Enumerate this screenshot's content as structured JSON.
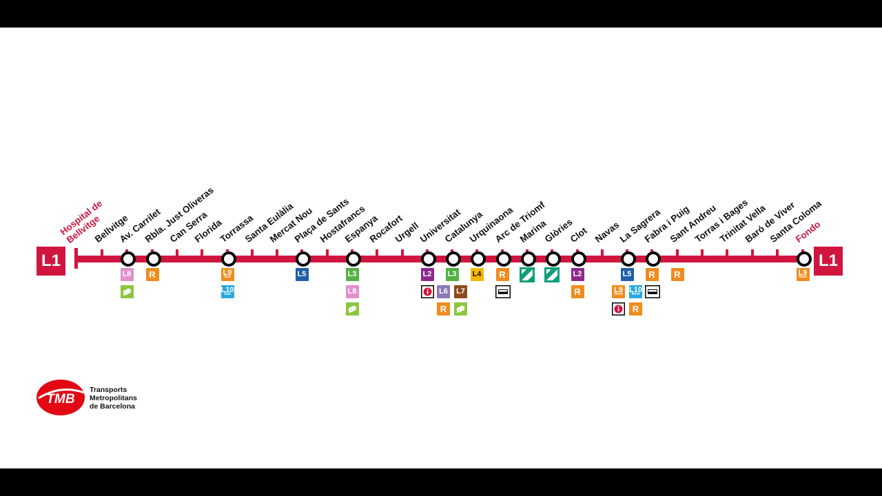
{
  "colors": {
    "line": "#d0153f",
    "label": "#111111",
    "terminal_label": "#d0153f",
    "L2": "#8e2a8f",
    "L3": "#52b142",
    "L4": "#f5b800",
    "L5": "#1f5faa",
    "L6": "#8b7ab8",
    "L7": "#8b4a1e",
    "L8": "#e38fcd",
    "L9": "#f08c1e",
    "L10": "#29a9e1",
    "R": "#f08c1e",
    "FGC": "#8cc63f",
    "tram": "#0d9e7a"
  },
  "line": {
    "name": "L1",
    "start_terminal": "Hospital de Bellvitge",
    "end_terminal": "Fondo"
  },
  "stations": [
    {
      "name": "Bellvitge",
      "xpos": 148,
      "node": false,
      "badges": []
    },
    {
      "name": "Av. Carrilet",
      "xpos": 184,
      "node": true,
      "badges": [
        [
          {
            "t": "L8",
            "c": "L8"
          }
        ],
        [
          {
            "t": "fgc-icon",
            "c": "FGC",
            "icon": true
          }
        ]
      ]
    },
    {
      "name": "Rbla. Just Oliveras",
      "xpos": 221,
      "node": true,
      "badges": [
        [
          {
            "t": "R",
            "c": "R"
          }
        ]
      ]
    },
    {
      "name": "Can Serra",
      "xpos": 257,
      "node": false,
      "badges": []
    },
    {
      "name": "Florida",
      "xpos": 293,
      "node": false,
      "badges": []
    },
    {
      "name": "Torrassa",
      "xpos": 330,
      "node": true,
      "badges": [
        [
          {
            "t": "L9",
            "c": "L9",
            "sub": "Sud"
          }
        ],
        [
          {
            "t": "L10",
            "c": "L10",
            "sub": "Sud"
          }
        ]
      ]
    },
    {
      "name": "Santa Eulàlia",
      "xpos": 366,
      "node": false,
      "badges": []
    },
    {
      "name": "Mercat Nou",
      "xpos": 402,
      "node": false,
      "badges": []
    },
    {
      "name": "Plaça de Sants",
      "xpos": 438,
      "node": true,
      "badges": [
        [
          {
            "t": "L5",
            "c": "L5"
          }
        ]
      ]
    },
    {
      "name": "Hostafrancs",
      "xpos": 475,
      "node": false,
      "badges": []
    },
    {
      "name": "Espanya",
      "xpos": 511,
      "node": true,
      "badges": [
        [
          {
            "t": "L3",
            "c": "L3"
          }
        ],
        [
          {
            "t": "L8",
            "c": "L8"
          }
        ],
        [
          {
            "t": "fgc-icon",
            "c": "FGC",
            "icon": true
          }
        ]
      ]
    },
    {
      "name": "Rocafort",
      "xpos": 547,
      "node": false,
      "badges": []
    },
    {
      "name": "Urgell",
      "xpos": 584,
      "node": false,
      "badges": []
    },
    {
      "name": "Universitat",
      "xpos": 620,
      "node": true,
      "badges": [
        [
          {
            "t": "L2",
            "c": "L2"
          }
        ],
        [
          {
            "t": "info-icon",
            "c": "info",
            "icon": true
          }
        ]
      ]
    },
    {
      "name": "Catalunya",
      "xpos": 656,
      "node": true,
      "badges": [
        [
          {
            "t": "L3",
            "c": "L3"
          }
        ],
        [
          {
            "t": "L6",
            "c": "L6"
          },
          {
            "t": "L7",
            "c": "L7"
          }
        ],
        [
          {
            "t": "R",
            "c": "R"
          },
          {
            "t": "fgc-icon",
            "c": "FGC",
            "icon": true
          }
        ]
      ]
    },
    {
      "name": "Urquinaona",
      "xpos": 692,
      "node": true,
      "badges": [
        [
          {
            "t": "L4",
            "c": "L4"
          }
        ]
      ]
    },
    {
      "name": "Arc de Triomf",
      "xpos": 729,
      "node": true,
      "badges": [
        [
          {
            "t": "R",
            "c": "R"
          }
        ],
        [
          {
            "t": "bus-icon",
            "c": "bus",
            "icon": true
          }
        ]
      ]
    },
    {
      "name": "Marina",
      "xpos": 765,
      "node": true,
      "badges": [
        [
          {
            "t": "tram-icon",
            "c": "tram",
            "icon": true
          }
        ]
      ]
    },
    {
      "name": "Glòries",
      "xpos": 801,
      "node": true,
      "badges": [
        [
          {
            "t": "tram-icon",
            "c": "tram",
            "icon": true
          }
        ]
      ]
    },
    {
      "name": "Clot",
      "xpos": 838,
      "node": true,
      "badges": [
        [
          {
            "t": "L2",
            "c": "L2"
          }
        ],
        [
          {
            "t": "R",
            "c": "R"
          }
        ]
      ]
    },
    {
      "name": "Navas",
      "xpos": 874,
      "node": false,
      "badges": []
    },
    {
      "name": "La Sagrera",
      "xpos": 910,
      "node": true,
      "badges": [
        [
          {
            "t": "L5",
            "c": "L5"
          }
        ],
        [
          {
            "t": "L9",
            "c": "L9",
            "sub": "Nord"
          },
          {
            "t": "L10",
            "c": "L10",
            "sub": "Nord"
          }
        ],
        [
          {
            "t": "info-icon",
            "c": "info",
            "icon": true
          },
          {
            "t": "R",
            "c": "R"
          }
        ]
      ]
    },
    {
      "name": "Fabra i Puig",
      "xpos": 946,
      "node": true,
      "badges": [
        [
          {
            "t": "R",
            "c": "R"
          }
        ],
        [
          {
            "t": "bus-icon",
            "c": "bus",
            "icon": true
          }
        ]
      ]
    },
    {
      "name": "Sant Andreu",
      "xpos": 983,
      "node": false,
      "badges": [
        [
          {
            "t": "R",
            "c": "R"
          }
        ]
      ]
    },
    {
      "name": "Torras i Bages",
      "xpos": 1019,
      "node": false,
      "badges": []
    },
    {
      "name": "Trinitat Vella",
      "xpos": 1055,
      "node": false,
      "badges": []
    },
    {
      "name": "Baró de Viver",
      "xpos": 1092,
      "node": false,
      "badges": []
    },
    {
      "name": "Santa Coloma",
      "xpos": 1128,
      "node": false,
      "badges": []
    },
    {
      "name": "Fondo",
      "xpos": 1165,
      "node": true,
      "terminal": true,
      "badges": [
        [
          {
            "t": "L9",
            "c": "L9",
            "sub": "Nord"
          }
        ]
      ]
    }
  ],
  "logo": {
    "mark": "TMB",
    "line1": "Transports",
    "line2": "Metropolitans",
    "line3": "de Barcelona"
  }
}
